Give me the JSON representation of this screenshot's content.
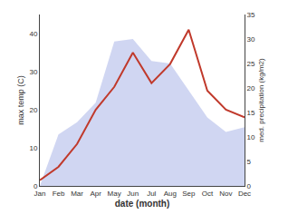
{
  "chart_data": {
    "type": "line",
    "xlabel": "date (month)",
    "ylabel": "max temp (C)",
    "y2label": "med. precipitation (kg/m2)",
    "categories": [
      "Jan",
      "Feb",
      "Mar",
      "Apr",
      "May",
      "Jun",
      "Jul",
      "Aug",
      "Sep",
      "Oct",
      "Nov",
      "Dec"
    ],
    "series": [
      {
        "type": "area",
        "axis": "y2",
        "color": "#aab4e8",
        "values": [
          0,
          10.5,
          13.0,
          17.0,
          29.5,
          30.0,
          25.5,
          25.0,
          19.5,
          14.0,
          11.0,
          12.0
        ]
      },
      {
        "type": "line",
        "color": "#c0392b",
        "values": [
          1.5,
          5.0,
          11.0,
          20.0,
          26.0,
          35.0,
          27.0,
          32.0,
          41.0,
          25.0,
          20.0,
          18.0
        ]
      }
    ],
    "ylim": [
      0,
      45
    ],
    "yticks": [
      0,
      10,
      20,
      30,
      40
    ],
    "y2lim": [
      0,
      35
    ],
    "y2ticks": [
      0,
      5,
      10,
      15,
      20,
      25,
      30,
      35
    ],
    "grid": false
  }
}
